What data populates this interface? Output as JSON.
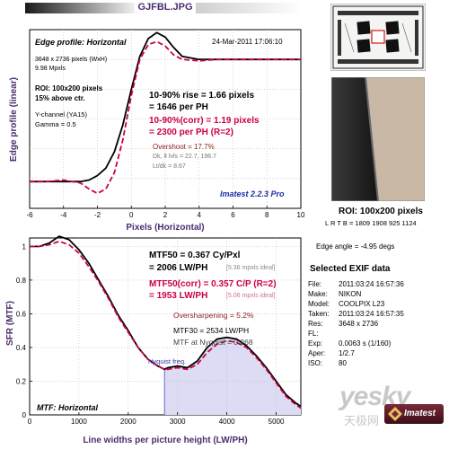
{
  "header": {
    "filename": "GJFBL.JPG",
    "imatest_badge": "Imatest"
  },
  "edge_panel": {
    "title": "Edge profile: Horizontal",
    "datetime": "24-Mar-2011 17:06:10",
    "size": "3648 x 2736 pixels (WxH)",
    "mpxls": "9.98 Mpxls",
    "roi": "ROI: 100x200 pixels",
    "above": "15% above ctr.",
    "channel": "Y-channel (YA15)",
    "gamma": "Gamma = 0.5",
    "rise1": "10-90% rise = 1.66 pixels",
    "rise2": "= 1646 per PH",
    "corr1": "10-90%(corr) = 1.19 pixels",
    "corr2": "= 2300 per PH   (R=2)",
    "overshoot": "Overshoot = 17.7%",
    "dk": "Dk, lt lvls = 22.7, 196.7",
    "ltdk": "Lt/dk = 8.67",
    "version": "Imatest 2.2.3 Pro",
    "ylabel": "Edge profile (linear)",
    "xlabel": "Pixels (Horizontal)"
  },
  "mtf_panel": {
    "mtf50_1": "MTF50 = 0.367 Cy/Pxl",
    "mtf50_2": "= 2006 LW/PH",
    "mtf50_ideal": "[5.36 mpxls ideal]",
    "corr1": "MTF50(corr) = 0.357 C/P  (R=2)",
    "corr2": "= 1953 LW/PH",
    "corr_ideal": "[5.06 mpxls ideal]",
    "oversharp": "Oversharpening = 5.2%",
    "mtf30": "MTF30 = 2534 LW/PH",
    "nyq": "MTF at Nyquist = 0.268",
    "nyq_label": "Nyquist freq.",
    "title": "MTF: Horizontal",
    "ylabel": "SFR (MTF)",
    "xlabel": "Line widths per picture height (LW/PH)"
  },
  "side": {
    "roi_caption": "ROI: 100x200 pixels",
    "lrtb": "L R T B = 1809 1908  925 1124",
    "edge_angle": "Edge angle = -4.95 degs"
  },
  "exif": {
    "title": "Selected EXIF data",
    "rows": [
      {
        "k": "File:",
        "v": "2011:03:24 16:57:36"
      },
      {
        "k": "Make:",
        "v": "NIKON"
      },
      {
        "k": "Model:",
        "v": "COOLPIX L23"
      },
      {
        "k": "Taken:",
        "v": "2011:03:24 16:57:35"
      },
      {
        "k": "Res:",
        "v": "3648 x 2736"
      },
      {
        "k": "FL:",
        "v": ""
      },
      {
        "k": "Exp:",
        "v": "0.0063 s   (1/160)"
      },
      {
        "k": "Aper:",
        "v": "1/2.7"
      },
      {
        "k": "ISO:",
        "v": "80"
      }
    ]
  },
  "watermark": {
    "text": "yesky",
    "sub": "天极网"
  },
  "colors": {
    "black": "#000000",
    "corrected": "#cc0044",
    "nyquist": "#6666cc",
    "fill": "#dcdcf4",
    "label": "#4b2d6e",
    "version": "#1a2fa8"
  },
  "chart_data": [
    {
      "type": "line",
      "title": "Edge profile: Horizontal",
      "xlabel": "Pixels (Horizontal)",
      "ylabel": "Edge profile (linear)",
      "xlim": [
        -6,
        10
      ],
      "ylim": [
        0,
        1.2
      ],
      "xticks": [
        -6,
        -4,
        -2,
        0,
        2,
        4,
        6,
        8,
        10
      ],
      "series": [
        {
          "x": [
            -6,
            -5,
            -4,
            -3,
            -2.5,
            -2,
            -1.5,
            -1,
            -0.5,
            0,
            0.5,
            1,
            1.5,
            2,
            2.5,
            3,
            4,
            5,
            6,
            7,
            8,
            9,
            10
          ],
          "y": [
            0.18,
            0.18,
            0.18,
            0.18,
            0.19,
            0.22,
            0.27,
            0.38,
            0.56,
            0.8,
            1.02,
            1.14,
            1.18,
            1.15,
            1.08,
            1.02,
            1.0,
            1.0,
            1.0,
            1.0,
            1.0,
            1.0,
            1.0
          ]
        },
        {
          "x": [
            -6,
            -5,
            -4,
            -3,
            -2.5,
            -2,
            -1.5,
            -1,
            -0.5,
            0,
            0.5,
            1,
            1.5,
            2,
            2.5,
            3,
            4,
            5,
            6,
            7,
            8,
            9,
            10
          ],
          "y": [
            0.18,
            0.18,
            0.19,
            0.17,
            0.13,
            0.1,
            0.13,
            0.24,
            0.46,
            0.76,
            1.0,
            1.1,
            1.12,
            1.09,
            1.03,
            1.0,
            0.99,
            1.0,
            1.0,
            1.0,
            1.0,
            1.0,
            1.0
          ]
        }
      ]
    },
    {
      "type": "line",
      "title": "MTF: Horizontal",
      "xlabel": "Line widths per picture height (LW/PH)",
      "ylabel": "SFR (MTF)",
      "xlim": [
        0,
        5500
      ],
      "ylim": [
        0,
        1.05
      ],
      "xticks": [
        0,
        1000,
        2000,
        3000,
        4000,
        5000
      ],
      "yticks": [
        0,
        0.2,
        0.4,
        0.6,
        0.8,
        1
      ],
      "nyquist": 2736,
      "series": [
        {
          "x": [
            0,
            200,
            400,
            600,
            800,
            1000,
            1200,
            1400,
            1600,
            1800,
            2000,
            2200,
            2400,
            2600,
            2736,
            2800,
            3000,
            3200,
            3400,
            3600,
            3800,
            4000,
            4200,
            4400,
            4600,
            4800,
            5000,
            5200,
            5400,
            5500
          ],
          "y": [
            1.0,
            1.0,
            1.02,
            1.06,
            1.04,
            0.98,
            0.9,
            0.8,
            0.7,
            0.59,
            0.5,
            0.4,
            0.33,
            0.29,
            0.27,
            0.28,
            0.29,
            0.28,
            0.32,
            0.4,
            0.45,
            0.46,
            0.45,
            0.41,
            0.35,
            0.28,
            0.2,
            0.12,
            0.07,
            0.05
          ]
        },
        {
          "x": [
            0,
            200,
            400,
            600,
            800,
            1000,
            1200,
            1400,
            1600,
            1800,
            2000,
            2200,
            2400,
            2600,
            2736,
            2800,
            3000,
            3200,
            3400,
            3600,
            3800,
            4000,
            4200,
            4400,
            4600,
            4800,
            5000,
            5200,
            5400,
            5500
          ],
          "y": [
            1.0,
            1.0,
            1.01,
            1.03,
            1.01,
            0.96,
            0.88,
            0.79,
            0.69,
            0.58,
            0.49,
            0.4,
            0.33,
            0.29,
            0.27,
            0.27,
            0.28,
            0.27,
            0.3,
            0.37,
            0.42,
            0.44,
            0.43,
            0.4,
            0.34,
            0.27,
            0.19,
            0.11,
            0.06,
            0.04
          ]
        }
      ]
    }
  ]
}
